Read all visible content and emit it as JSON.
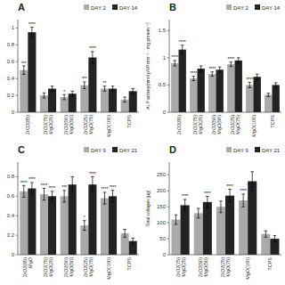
{
  "chart_data": [
    {
      "type": "bar",
      "title": "A",
      "categories": [
        "ZrO2(85)",
        "ZrO2(75)\nMgO(25)",
        "ZrO2(50)\nMgO(50)",
        "ZrO2(25)\nMgO(75)",
        "MgO(100)",
        "TCPS"
      ],
      "series": [
        {
          "name": "DAY 2",
          "color": "#aaaaaa",
          "values": [
            0.5,
            0.2,
            0.18,
            0.32,
            0.28,
            0.15
          ],
          "errors": [
            0.05,
            0.03,
            0.03,
            0.04,
            0.03,
            0.03
          ],
          "annotations": [
            "***",
            null,
            "*",
            "***",
            "**",
            null
          ]
        },
        {
          "name": "DAY 14",
          "color": "#222222",
          "values": [
            0.95,
            0.28,
            0.22,
            0.65,
            0.28,
            0.25
          ],
          "errors": [
            0.06,
            0.03,
            0.03,
            0.07,
            0.03,
            0.03
          ],
          "annotations": [
            "****",
            null,
            null,
            "****",
            null,
            null
          ]
        }
      ],
      "ylim": [
        0,
        1.1
      ],
      "yticks": [
        0,
        0.2,
        0.4,
        0.6,
        0.8,
        1
      ],
      "legend": "upper right"
    },
    {
      "type": "bar",
      "title": "B",
      "y_label": "ALP activity(nmol pNP min⁻¹ · mg protein⁻¹)",
      "categories": [
        "ZrO2(85)",
        "ZrO2(75)\nMgO(25)",
        "ZrO2(50)\nMgO(50)",
        "ZrO2(25)\nMgO(75)",
        "MgO(100)",
        "TCPS"
      ],
      "series": [
        {
          "name": "DAY 2",
          "color": "#aaaaaa",
          "values": [
            0.9,
            0.62,
            0.7,
            0.88,
            0.5,
            0.32
          ],
          "errors": [
            0.05,
            0.04,
            0.04,
            0.04,
            0.05,
            0.03
          ],
          "annotations": [
            "****",
            "****",
            "****",
            "****",
            "****",
            null
          ]
        },
        {
          "name": "DAY 14",
          "color": "#222222",
          "values": [
            1.15,
            0.8,
            0.78,
            0.95,
            0.65,
            0.5
          ],
          "errors": [
            0.08,
            0.05,
            0.05,
            0.05,
            0.05,
            0.04
          ],
          "annotations": [
            "****",
            null,
            null,
            null,
            null,
            null
          ]
        }
      ],
      "ylim": [
        0,
        1.7
      ],
      "yticks": [
        0,
        0.5,
        1,
        1.5
      ],
      "legend": "upper right"
    },
    {
      "type": "bar",
      "title": "C",
      "categories": [
        "ZrO2(85)\nMgO",
        "ZrO2(75)\nMgO(25)",
        "ZrO2(50)\nMgO(50)",
        "ZrO2(25)\nMgO(75)",
        "MgO(100)",
        "TCPS"
      ],
      "series": [
        {
          "name": "DAY 9",
          "color": "#aaaaaa",
          "values": [
            0.65,
            0.62,
            0.6,
            0.3,
            0.58,
            0.22
          ],
          "errors": [
            0.06,
            0.06,
            0.06,
            0.05,
            0.06,
            0.04
          ],
          "annotations": [
            "****",
            "****",
            "***",
            "*",
            "****",
            null
          ]
        },
        {
          "name": "DAY 21",
          "color": "#222222",
          "values": [
            0.68,
            0.6,
            0.72,
            0.72,
            0.6,
            0.14
          ],
          "errors": [
            0.06,
            0.05,
            0.08,
            0.08,
            0.06,
            0.03
          ],
          "annotations": [
            "****",
            "****",
            null,
            "****",
            "****",
            null
          ]
        }
      ],
      "ylim": [
        0,
        0.95
      ],
      "yticks": [
        0,
        0.2,
        0.4,
        0.6,
        0.8
      ],
      "legend": "upper right"
    },
    {
      "type": "bar",
      "title": "D",
      "y_label": "Total collagen (µg)",
      "categories": [
        "ZrO2(75)\nMgO(25)",
        "ZrO2(50)\nMgO(50)",
        "ZrO2(25)\nMgO(75)",
        "MgO(100)",
        "TCPS"
      ],
      "series": [
        {
          "name": "DAY 9",
          "color": "#aaaaaa",
          "values": [
            110,
            130,
            150,
            170,
            65
          ],
          "errors": [
            15,
            15,
            18,
            20,
            10
          ],
          "annotations": [
            null,
            null,
            null,
            "****",
            null
          ]
        },
        {
          "name": "DAY 21",
          "color": "#222222",
          "values": [
            155,
            165,
            185,
            230,
            50
          ],
          "errors": [
            18,
            18,
            20,
            30,
            10
          ],
          "annotations": [
            "****",
            "****",
            "****",
            null,
            null
          ]
        }
      ],
      "ylim": [
        0,
        290
      ],
      "yticks": [
        0,
        50,
        100,
        150,
        200,
        250
      ],
      "legend": "upper right"
    }
  ]
}
